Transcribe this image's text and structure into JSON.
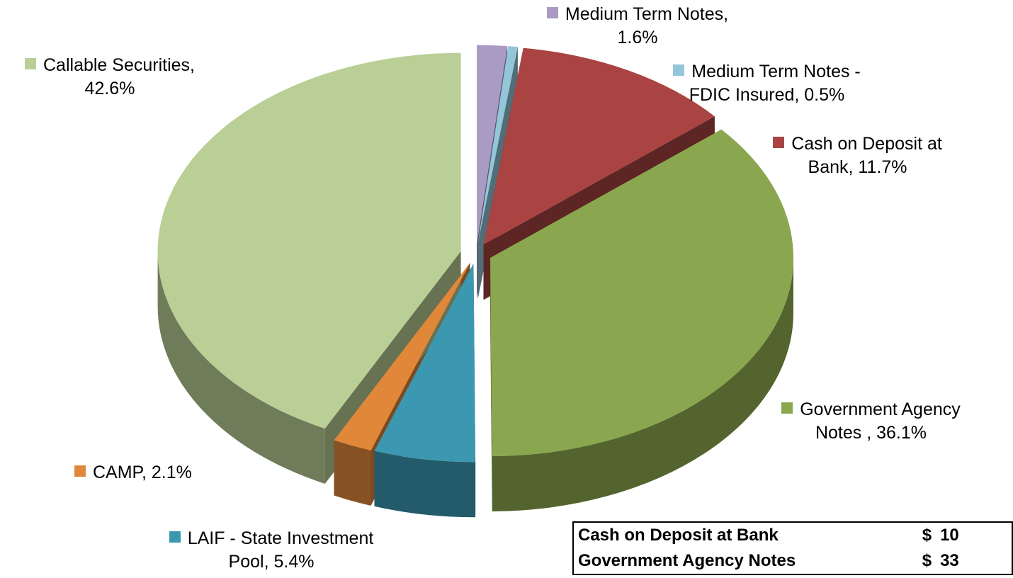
{
  "chart_data": {
    "type": "pie3d",
    "categories": [
      "Medium Term Notes,",
      "Medium Term Notes - FDIC Insured,",
      "Cash on Deposit at Bank,",
      "Government Agency Notes ,",
      "LAIF - State Investment Pool,",
      "CAMP,",
      "Callable Securities,"
    ],
    "values": [
      1.6,
      0.5,
      11.7,
      36.1,
      5.4,
      2.1,
      42.6
    ],
    "value_labels": [
      "1.6%",
      "0.5%",
      "11.7%",
      "36.1%",
      "5.4%",
      "2.1%",
      "42.6%"
    ],
    "colors": [
      "#a99bc4",
      "#93c6d8",
      "#a94442",
      "#8aa64e",
      "#3c98b0",
      "#e0873a",
      "#b9cf95"
    ]
  },
  "table": {
    "rows": [
      [
        "Cash on Deposit at Bank",
        "$",
        "10"
      ],
      [
        "Government Agency Notes",
        "$",
        "33"
      ]
    ]
  }
}
